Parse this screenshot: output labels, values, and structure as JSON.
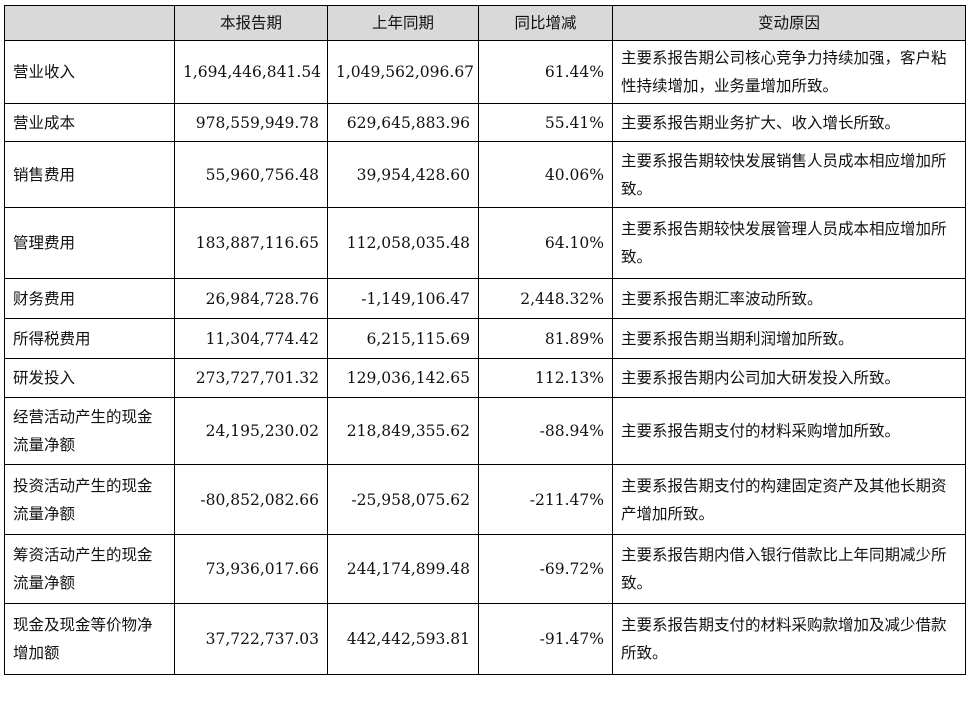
{
  "table": {
    "headers": [
      "",
      "本报告期",
      "上年同期",
      "同比增减",
      "变动原因"
    ],
    "rows": [
      {
        "label": "营业收入",
        "current": "1,694,446,841.54",
        "prior": "1,049,562,096.67",
        "yoy": "61.44%",
        "reason": "主要系报告期公司核心竞争力持续加强，客户粘性持续增加，业务量增加所致。"
      },
      {
        "label": "营业成本",
        "current": "978,559,949.78",
        "prior": "629,645,883.96",
        "yoy": "55.41%",
        "reason": "主要系报告期业务扩大、收入增长所致。"
      },
      {
        "label": "销售费用",
        "current": "55,960,756.48",
        "prior": "39,954,428.60",
        "yoy": "40.06%",
        "reason": "主要系报告期较快发展销售人员成本相应增加所致。"
      },
      {
        "label": "管理费用",
        "current": "183,887,116.65",
        "prior": "112,058,035.48",
        "yoy": "64.10%",
        "reason": "主要系报告期较快发展管理人员成本相应增加所致。"
      },
      {
        "label": "财务费用",
        "current": "26,984,728.76",
        "prior": "-1,149,106.47",
        "yoy": "2,448.32%",
        "reason": "主要系报告期汇率波动所致。"
      },
      {
        "label": "所得税费用",
        "current": "11,304,774.42",
        "prior": "6,215,115.69",
        "yoy": "81.89%",
        "reason": "主要系报告期当期利润增加所致。"
      },
      {
        "label": "研发投入",
        "current": "273,727,701.32",
        "prior": "129,036,142.65",
        "yoy": "112.13%",
        "reason": "主要系报告期内公司加大研发投入所致。"
      },
      {
        "label": "经营活动产生的现金流量净额",
        "current": "24,195,230.02",
        "prior": "218,849,355.62",
        "yoy": "-88.94%",
        "reason": "主要系报告期支付的材料采购增加所致。"
      },
      {
        "label": "投资活动产生的现金流量净额",
        "current": "-80,852,082.66",
        "prior": "-25,958,075.62",
        "yoy": "-211.47%",
        "reason": "主要系报告期支付的构建固定资产及其他长期资产增加所致。"
      },
      {
        "label": "筹资活动产生的现金流量净额",
        "current": "73,936,017.66",
        "prior": "244,174,899.48",
        "yoy": "-69.72%",
        "reason": "主要系报告期内借入银行借款比上年同期减少所致。"
      },
      {
        "label": "现金及现金等价物净增加额",
        "current": "37,722,737.03",
        "prior": "442,442,593.81",
        "yoy": "-91.47%",
        "reason": "主要系报告期支付的材料采购款增加及减少借款所致。"
      }
    ]
  }
}
